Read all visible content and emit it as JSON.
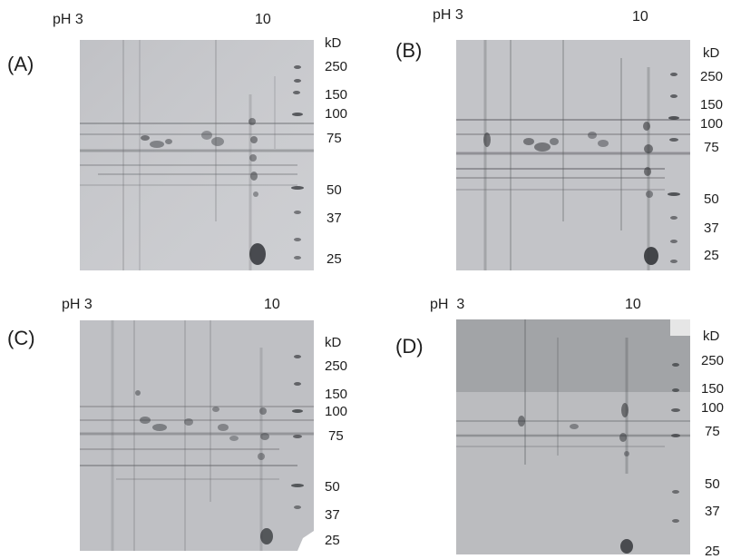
{
  "panels": [
    {
      "letter": "(A)",
      "ph_prefix": "pH",
      "ph_low": "3",
      "ph_high": "10",
      "markers": [
        "kD",
        "250",
        "150",
        "100",
        "75",
        "50",
        "37",
        "25"
      ]
    },
    {
      "letter": "(B)",
      "ph_prefix": "pH",
      "ph_low": "3",
      "ph_high": "10",
      "markers": [
        "kD",
        "250",
        "150",
        "100",
        "75",
        "50",
        "37",
        "25"
      ]
    },
    {
      "letter": "(C)",
      "ph_prefix": "pH",
      "ph_low": "3",
      "ph_high": "10",
      "markers": [
        "kD",
        "250",
        "150",
        "100",
        "75",
        "50",
        "37",
        "25"
      ]
    },
    {
      "letter": "(D)",
      "ph_prefix": "pH",
      "ph_low": "3",
      "ph_high": "10",
      "markers": [
        "kD",
        "250",
        "150",
        "100",
        "75",
        "50",
        "37",
        "25"
      ]
    }
  ],
  "colors": {
    "gel_light": "#c9cacd",
    "gel_dark": "#9c9ea2",
    "spot": "#3a3c40",
    "text": "#1e1e1e"
  }
}
